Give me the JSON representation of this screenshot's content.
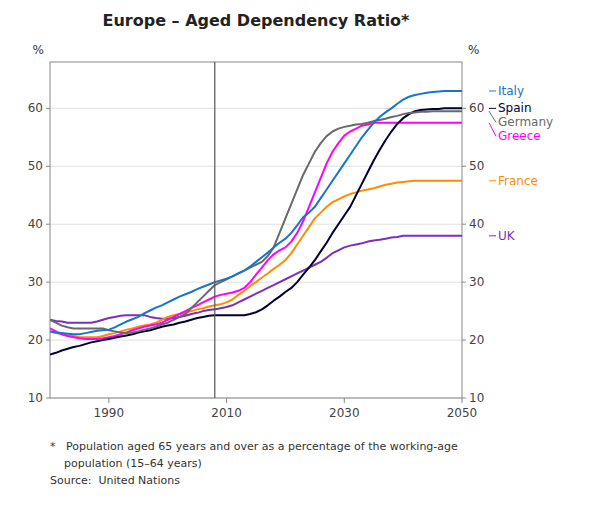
{
  "chart_data": {
    "type": "line",
    "title": "Europe – Aged Dependency Ratio*",
    "ylabel": "%",
    "y2label": "%",
    "footnotes": [
      "*   Population aged 65 years and over as a percentage of the working-age",
      "    population (15–64 years)",
      "Source:  United Nations"
    ],
    "xlim": [
      1980,
      2050
    ],
    "xticks": [
      1990,
      2010,
      2030,
      2050
    ],
    "ylim": [
      10,
      68
    ],
    "yticks": [
      10,
      20,
      30,
      40,
      50,
      60
    ],
    "y2lim": [
      10,
      68
    ],
    "y2ticks": [
      10,
      20,
      30,
      40,
      50,
      60
    ],
    "grid": "y",
    "vline_x": 2008,
    "x": [
      1980,
      1981,
      1982,
      1983,
      1984,
      1985,
      1986,
      1987,
      1988,
      1989,
      1990,
      1991,
      1992,
      1993,
      1994,
      1995,
      1996,
      1997,
      1998,
      1999,
      2000,
      2001,
      2002,
      2003,
      2004,
      2005,
      2006,
      2007,
      2008,
      2009,
      2010,
      2011,
      2012,
      2013,
      2014,
      2015,
      2016,
      2017,
      2018,
      2019,
      2020,
      2021,
      2022,
      2023,
      2024,
      2025,
      2026,
      2027,
      2028,
      2029,
      2030,
      2031,
      2032,
      2033,
      2034,
      2035,
      2036,
      2037,
      2038,
      2039,
      2040,
      2041,
      2042,
      2043,
      2044,
      2045,
      2046,
      2047,
      2048,
      2049,
      2050
    ],
    "series": [
      {
        "name": "UK",
        "color": "#7B2FBE",
        "values": [
          23.5,
          23.3,
          23.2,
          23.0,
          23.0,
          23.0,
          23.0,
          23.0,
          23.2,
          23.5,
          23.8,
          24.0,
          24.2,
          24.3,
          24.3,
          24.3,
          24.3,
          24.0,
          23.8,
          23.7,
          23.7,
          23.8,
          24.0,
          24.2,
          24.5,
          24.7,
          25.0,
          25.2,
          25.3,
          25.5,
          25.7,
          26.0,
          26.5,
          27.0,
          27.5,
          28.0,
          28.5,
          29.0,
          29.5,
          30.0,
          30.5,
          31.0,
          31.5,
          32.0,
          32.5,
          33.0,
          33.5,
          34.2,
          35.0,
          35.5,
          36.0,
          36.3,
          36.5,
          36.7,
          37.0,
          37.2,
          37.3,
          37.5,
          37.7,
          37.8,
          38.0,
          38.0,
          38.0,
          38.0,
          38.0,
          38.0,
          38.0,
          38.0,
          38.0,
          38.0,
          38.0
        ]
      },
      {
        "name": "France",
        "color": "#FF8C00",
        "values": [
          21.5,
          21.2,
          21.0,
          20.8,
          20.7,
          20.5,
          20.5,
          20.5,
          20.5,
          20.7,
          21.0,
          21.2,
          21.5,
          21.8,
          22.0,
          22.3,
          22.5,
          22.7,
          23.0,
          23.5,
          24.0,
          24.3,
          24.5,
          24.7,
          25.0,
          25.3,
          25.5,
          25.8,
          26.0,
          26.2,
          26.5,
          27.0,
          27.8,
          28.5,
          29.3,
          30.0,
          30.8,
          31.5,
          32.3,
          33.0,
          33.8,
          35.0,
          36.5,
          38.0,
          39.5,
          41.0,
          42.0,
          43.0,
          43.8,
          44.3,
          44.8,
          45.2,
          45.5,
          45.8,
          46.0,
          46.2,
          46.5,
          46.8,
          47.0,
          47.2,
          47.3,
          47.4,
          47.5,
          47.5,
          47.5,
          47.5,
          47.5,
          47.5,
          47.5,
          47.5,
          47.5
        ]
      },
      {
        "name": "Greece",
        "color": "#FF00FF",
        "values": [
          22.0,
          21.5,
          21.0,
          20.7,
          20.5,
          20.3,
          20.2,
          20.2,
          20.2,
          20.3,
          20.5,
          20.7,
          21.0,
          21.3,
          21.7,
          22.0,
          22.3,
          22.5,
          22.7,
          23.0,
          23.5,
          24.0,
          24.5,
          25.0,
          25.5,
          26.0,
          26.5,
          27.0,
          27.5,
          27.8,
          28.0,
          28.2,
          28.5,
          29.0,
          30.0,
          31.3,
          32.5,
          33.8,
          34.8,
          35.5,
          36.0,
          37.0,
          38.5,
          40.5,
          43.0,
          45.5,
          48.0,
          50.5,
          52.5,
          54.0,
          55.3,
          56.0,
          56.5,
          57.0,
          57.2,
          57.5,
          57.5,
          57.5,
          57.5,
          57.5,
          57.5,
          57.5,
          57.5,
          57.5,
          57.5,
          57.5,
          57.5,
          57.5,
          57.5,
          57.5,
          57.5
        ]
      },
      {
        "name": "Spain",
        "color": "#000033",
        "values": [
          17.5,
          17.8,
          18.2,
          18.5,
          18.8,
          19.0,
          19.3,
          19.6,
          19.8,
          20.0,
          20.2,
          20.4,
          20.6,
          20.8,
          21.0,
          21.3,
          21.5,
          21.7,
          22.0,
          22.3,
          22.5,
          22.7,
          23.0,
          23.2,
          23.5,
          23.8,
          24.0,
          24.2,
          24.3,
          24.3,
          24.3,
          24.3,
          24.3,
          24.3,
          24.5,
          24.8,
          25.3,
          26.0,
          26.8,
          27.5,
          28.3,
          29.0,
          30.0,
          31.3,
          32.5,
          33.8,
          35.3,
          36.8,
          38.5,
          40.0,
          41.5,
          43.0,
          45.0,
          47.0,
          49.0,
          51.0,
          52.8,
          54.5,
          56.0,
          57.3,
          58.3,
          59.0,
          59.5,
          59.7,
          59.8,
          59.9,
          59.9,
          60.0,
          60.0,
          60.0,
          60.0
        ]
      },
      {
        "name": "Germany",
        "color": "#696969",
        "values": [
          23.5,
          23.0,
          22.5,
          22.2,
          22.0,
          22.0,
          22.0,
          22.0,
          22.0,
          22.0,
          21.7,
          21.5,
          21.3,
          21.2,
          21.3,
          21.5,
          21.8,
          22.0,
          22.3,
          22.7,
          23.0,
          23.5,
          24.0,
          24.5,
          25.5,
          26.5,
          27.5,
          28.5,
          29.5,
          30.0,
          30.5,
          31.0,
          31.5,
          32.0,
          32.5,
          33.0,
          33.5,
          34.5,
          36.0,
          38.5,
          41.0,
          43.5,
          46.0,
          48.5,
          50.5,
          52.5,
          54.0,
          55.2,
          56.0,
          56.5,
          56.8,
          57.0,
          57.2,
          57.3,
          57.5,
          57.8,
          58.0,
          58.2,
          58.5,
          58.7,
          59.0,
          59.2,
          59.3,
          59.4,
          59.4,
          59.5,
          59.5,
          59.5,
          59.5,
          59.5,
          59.5
        ]
      },
      {
        "name": "Italy",
        "color": "#1874CD",
        "values": [
          21.5,
          21.3,
          21.2,
          21.1,
          21.0,
          21.0,
          21.2,
          21.4,
          21.6,
          21.7,
          21.8,
          22.2,
          22.7,
          23.2,
          23.6,
          24.0,
          24.6,
          25.1,
          25.6,
          26.0,
          26.5,
          27.0,
          27.5,
          27.9,
          28.3,
          28.8,
          29.2,
          29.6,
          30.0,
          30.3,
          30.6,
          31.0,
          31.5,
          32.0,
          32.7,
          33.5,
          34.3,
          35.1,
          36.0,
          36.8,
          37.5,
          38.5,
          39.8,
          41.2,
          42.0,
          43.0,
          44.5,
          46.0,
          47.5,
          49.0,
          50.5,
          52.0,
          53.5,
          55.0,
          56.3,
          57.5,
          58.5,
          59.3,
          60.0,
          60.8,
          61.5,
          62.0,
          62.3,
          62.5,
          62.7,
          62.8,
          62.9,
          63.0,
          63.0,
          63.0,
          63.0
        ]
      }
    ]
  }
}
